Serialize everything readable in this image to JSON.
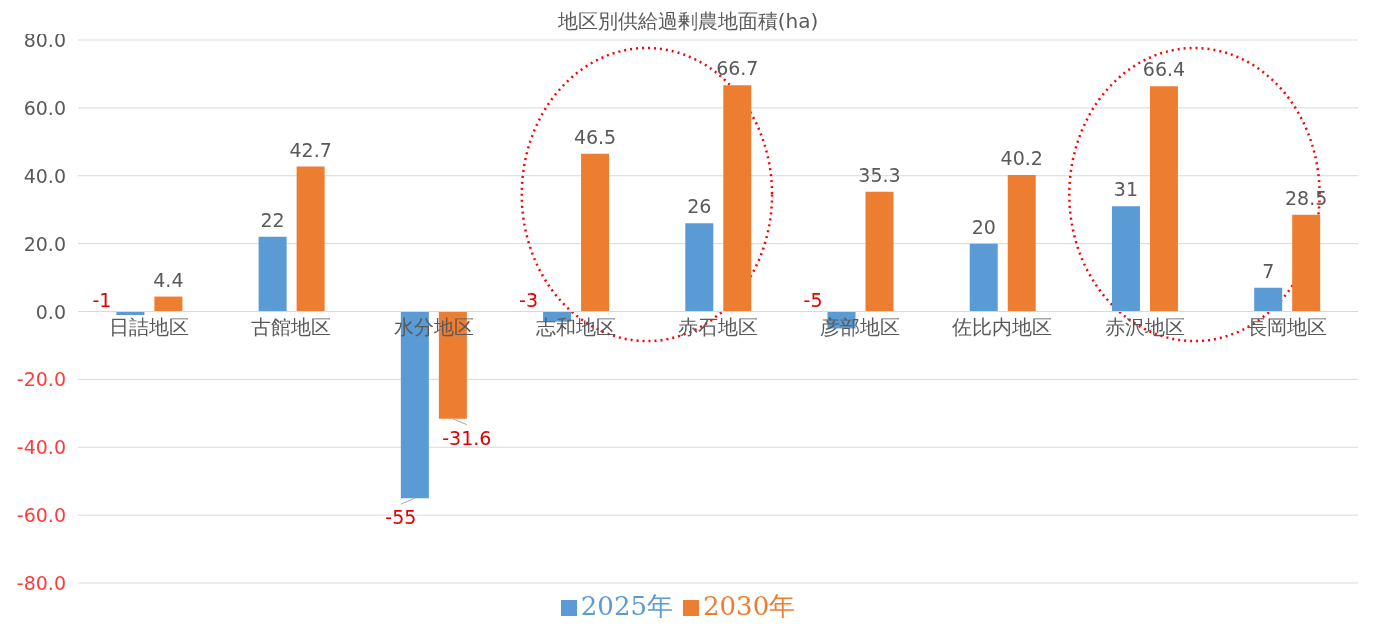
{
  "chart_data": {
    "type": "bar",
    "title": "地区別供給過剰農地面積(ha)",
    "categories": [
      "日詰地区",
      "古館地区",
      "水分地区",
      "志和地区",
      "赤石地区",
      "彦部地区",
      "佐比内地区",
      "赤沢地区",
      "長岡地区"
    ],
    "series": [
      {
        "name": "2025年",
        "color": "#5b9bd5",
        "values": [
          -1,
          22,
          -55,
          -3,
          26,
          -5,
          20,
          31,
          7
        ]
      },
      {
        "name": "2030年",
        "color": "#ed7d31",
        "values": [
          4.4,
          42.7,
          -31.6,
          46.5,
          66.7,
          35.3,
          40.2,
          66.4,
          28.5
        ]
      }
    ],
    "ylim": [
      -80,
      80
    ],
    "yticks": [
      {
        "value": -80,
        "label": "-80.0"
      },
      {
        "value": -60,
        "label": "-60.0"
      },
      {
        "value": -40,
        "label": "-40.0"
      },
      {
        "value": -20,
        "label": "-20.0"
      },
      {
        "value": 0,
        "label": "0.0"
      },
      {
        "value": 20,
        "label": "20.0"
      },
      {
        "value": 40,
        "label": "40.0"
      },
      {
        "value": 60,
        "label": "60.0"
      },
      {
        "value": 80,
        "label": "80.0"
      }
    ],
    "grid": "y",
    "legend": "bottom",
    "data_labels": true
  }
}
